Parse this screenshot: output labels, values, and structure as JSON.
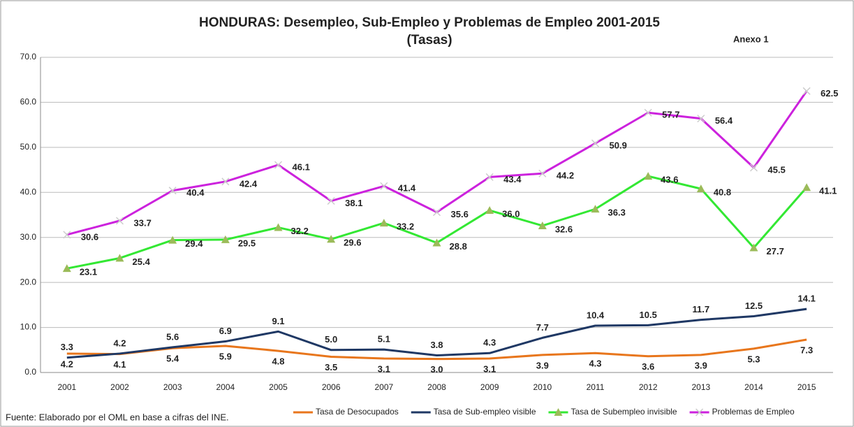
{
  "chart_data": {
    "type": "line",
    "title": "HONDURAS: Desempleo, Sub-Empleo y Problemas de Empleo 2001-2015",
    "subtitle": "(Tasas)",
    "annotation": "Anexo 1",
    "source": "Fuente: Elaborado por el OML en base a cifras del INE.",
    "categories": [
      "2001",
      "2002",
      "2003",
      "2004",
      "2005",
      "2006",
      "2007",
      "2008",
      "2009",
      "2010",
      "2011",
      "2012",
      "2013",
      "2014",
      "2015"
    ],
    "ylim": [
      0,
      70
    ],
    "yticks": [
      {
        "value": 0,
        "label": "0.0"
      },
      {
        "value": 10,
        "label": "10.0"
      },
      {
        "value": 20,
        "label": "20.0"
      },
      {
        "value": 30,
        "label": "30.0"
      },
      {
        "value": 40,
        "label": "40.0"
      },
      {
        "value": 50,
        "label": "50.0"
      },
      {
        "value": 60,
        "label": "60.0"
      },
      {
        "value": 70,
        "label": "70.0"
      }
    ],
    "grid": true,
    "legend": "bottom",
    "series": [
      {
        "name": "Tasa de Desocupados",
        "color": "#e8761c",
        "marker": "none",
        "values": [
          4.2,
          4.1,
          5.4,
          5.9,
          4.8,
          3.5,
          3.1,
          3.0,
          3.1,
          3.9,
          4.3,
          3.6,
          3.9,
          5.3,
          7.3
        ],
        "value_labels": [
          "4.2",
          "4.1",
          "5.4",
          "5.9",
          "4.8",
          "3.5",
          "3.1",
          "3.0",
          "3.1",
          "3.9",
          "4.3",
          "3.6",
          "3.9",
          "5.3",
          "7.3"
        ]
      },
      {
        "name": "Tasa de Sub-empleo visible",
        "color": "#1f3864",
        "marker": "none",
        "values": [
          3.3,
          4.2,
          5.6,
          6.9,
          9.1,
          5.0,
          5.1,
          3.8,
          4.3,
          7.7,
          10.4,
          10.5,
          11.7,
          12.5,
          14.1
        ],
        "value_labels": [
          "3.3",
          "4.2",
          "5.6",
          "6.9",
          "9.1",
          "5.0",
          "5.1",
          "3.8",
          "4.3",
          "7.7",
          "10.4",
          "10.5",
          "11.7",
          "12.5",
          "14.1"
        ]
      },
      {
        "name": "Tasa de Subempleo invisible",
        "color": "#33e833",
        "marker": "triangle",
        "values": [
          23.1,
          25.4,
          29.4,
          29.5,
          32.2,
          29.6,
          33.2,
          28.8,
          36.0,
          32.6,
          36.3,
          43.6,
          40.8,
          27.7,
          41.1
        ],
        "value_labels": [
          "23.1",
          "25.4",
          "29.4",
          "29.5",
          "32.2",
          "29.6",
          "33.2",
          "28.8",
          "36.0",
          "32.6",
          "36.3",
          "43.6",
          "40.8",
          "27.7",
          "41.1"
        ]
      },
      {
        "name": "Problemas de Empleo",
        "color": "#cc22dd",
        "marker": "x",
        "values": [
          30.6,
          33.7,
          40.4,
          42.4,
          46.1,
          38.1,
          41.4,
          35.6,
          43.4,
          44.2,
          50.9,
          57.7,
          56.4,
          45.5,
          62.5
        ],
        "value_labels": [
          "30.6",
          "33.7",
          "40.4",
          "42.4",
          "46.1",
          "38.1",
          "41.4",
          "35.6",
          "43.4",
          "44.2",
          "50.9",
          "57.7",
          "56.4",
          "45.5",
          "62.5"
        ]
      }
    ]
  }
}
